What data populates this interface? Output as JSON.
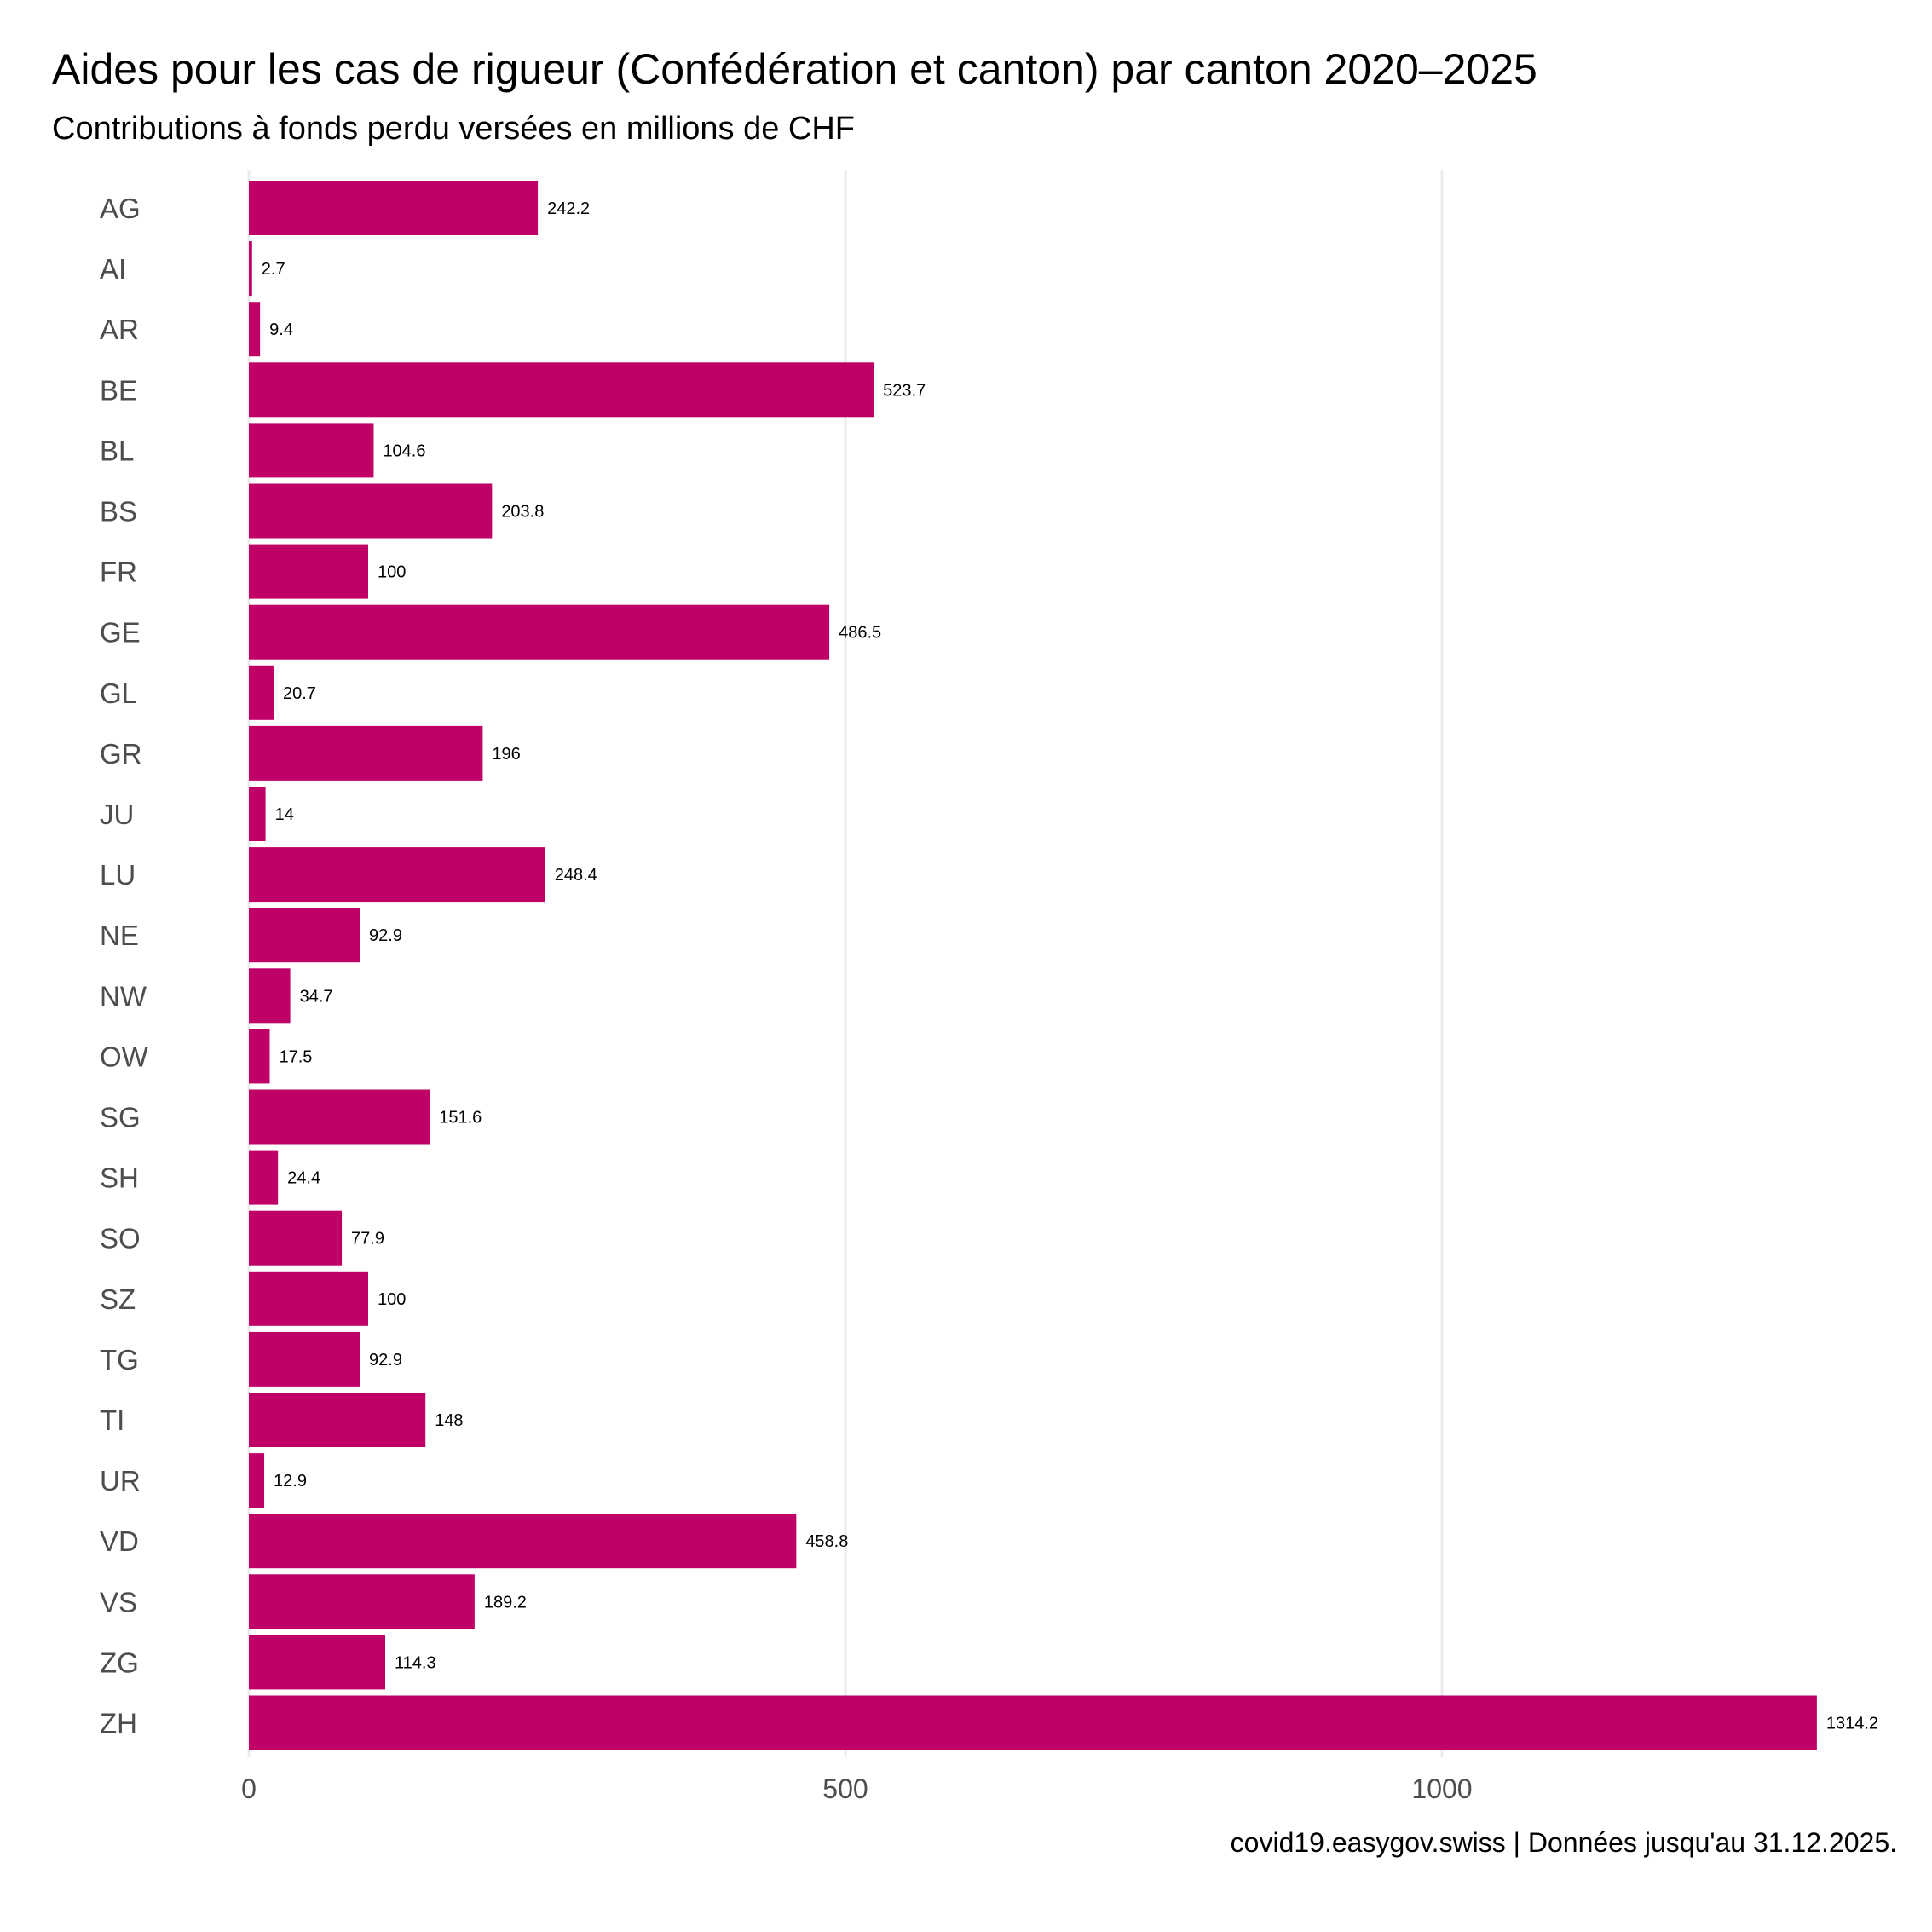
{
  "title": "Aides pour les cas de rigueur (Confédération et canton) par canton 2020–2025",
  "subtitle": "Contributions à fonds perdu versées en millions de CHF",
  "caption": "covid19.easygov.swiss | Données jusqu'au 31.12.2025.",
  "colors": {
    "bar": "#BE0067",
    "grid": "#EBEBEB",
    "axis_text": "#4D4D4D"
  },
  "chart_data": {
    "type": "bar",
    "orientation": "horizontal",
    "title": "Aides pour les cas de rigueur (Confédération et canton) par canton 2020–2025",
    "subtitle": "Contributions à fonds perdu versées en millions de CHF",
    "xlabel": "",
    "ylabel": "",
    "categories": [
      "AG",
      "AI",
      "AR",
      "BE",
      "BL",
      "BS",
      "FR",
      "GE",
      "GL",
      "GR",
      "JU",
      "LU",
      "NE",
      "NW",
      "OW",
      "SG",
      "SH",
      "SO",
      "SZ",
      "TG",
      "TI",
      "UR",
      "VD",
      "VS",
      "ZG",
      "ZH"
    ],
    "values": [
      242.2,
      2.7,
      9.4,
      523.7,
      104.6,
      203.8,
      100,
      486.5,
      20.7,
      196,
      14,
      248.4,
      92.9,
      34.7,
      17.5,
      151.6,
      24.4,
      77.9,
      100,
      92.9,
      148,
      12.9,
      458.8,
      189.2,
      114.3,
      1314.2
    ],
    "value_labels": [
      "242.2",
      "2.7",
      "9.4",
      "523.7",
      "104.6",
      "203.8",
      "100",
      "486.5",
      "20.7",
      "196",
      "14",
      "248.4",
      "92.9",
      "34.7",
      "17.5",
      "151.6",
      "24.4",
      "77.9",
      "100",
      "92.9",
      "148",
      "12.9",
      "458.8",
      "189.2",
      "114.3",
      "1314.2"
    ],
    "x_ticks": [
      0,
      500,
      1000
    ],
    "x_tick_labels": [
      "0",
      "500",
      "1000"
    ],
    "xlim": [
      0,
      1380
    ],
    "grid": "vertical major",
    "legend": "none",
    "caption": "covid19.easygov.swiss | Données jusqu'au 31.12.2025."
  }
}
